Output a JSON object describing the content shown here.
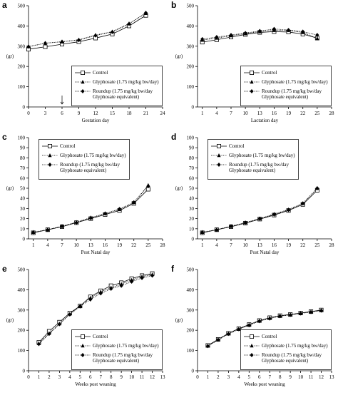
{
  "chart_data": [
    {
      "type": "line",
      "panel": "a",
      "ylabel": "(gr)",
      "xlabel": "Gestation day",
      "x": [
        0,
        3,
        6,
        9,
        12,
        15,
        18,
        21
      ],
      "xlim": [
        0,
        24
      ],
      "xticks": [
        0,
        3,
        6,
        9,
        12,
        15,
        18,
        21,
        24
      ],
      "ylim": [
        0,
        500
      ],
      "yticks": [
        0,
        100,
        200,
        300,
        400,
        500
      ],
      "legend": "lower right",
      "series": [
        {
          "name": "Control",
          "color": "#000000",
          "marker": "square",
          "dash": "solid",
          "values": [
            285,
            297,
            310,
            322,
            340,
            360,
            400,
            452
          ]
        },
        {
          "name": "Glyphosate (1.75 mg/kg bw/day)",
          "color": "#000000",
          "marker": "triangle",
          "dash": "dotted",
          "values": [
            298,
            315,
            322,
            332,
            355,
            372,
            412,
            462
          ]
        },
        {
          "name": "Roundup (1.75 mg/kg bw/day Glyphosate equivalent)",
          "color": "#000000",
          "marker": "diamond",
          "dash": "dotted",
          "values": [
            298,
            315,
            322,
            330,
            353,
            370,
            410,
            465
          ]
        }
      ]
    },
    {
      "type": "line",
      "panel": "b",
      "ylabel": "(gr)",
      "xlabel": "Lactation day",
      "x": [
        1,
        4,
        7,
        10,
        13,
        16,
        19,
        22,
        25
      ],
      "xlim": [
        0,
        28
      ],
      "xticks": [
        1,
        4,
        7,
        10,
        13,
        16,
        19,
        22,
        25,
        28
      ],
      "ylim": [
        0,
        500
      ],
      "yticks": [
        0,
        100,
        200,
        300,
        400,
        500
      ],
      "legend": "lower right",
      "series": [
        {
          "name": "Control",
          "color": "#000000",
          "marker": "square",
          "dash": "solid",
          "values": [
            320,
            332,
            345,
            358,
            368,
            372,
            370,
            360,
            340
          ]
        },
        {
          "name": "Glyphosate (1.75 mg/kg bw/day)",
          "color": "#000000",
          "marker": "triangle",
          "dash": "dotted",
          "values": [
            330,
            340,
            352,
            362,
            372,
            378,
            378,
            368,
            338
          ]
        },
        {
          "name": "Roundup (1.75 mg/kg bw/day Glyphosate equivalent)",
          "color": "#000000",
          "marker": "diamond",
          "dash": "dotted",
          "values": [
            335,
            345,
            355,
            365,
            375,
            385,
            380,
            372,
            355
          ]
        }
      ]
    },
    {
      "type": "line",
      "panel": "c",
      "ylabel": "(gr)",
      "xlabel": "Post Natal day",
      "x": [
        1,
        4,
        7,
        10,
        13,
        16,
        19,
        22,
        25
      ],
      "xlim": [
        0,
        28
      ],
      "xticks": [
        1,
        4,
        7,
        10,
        13,
        16,
        19,
        22,
        25,
        28
      ],
      "ylim": [
        0,
        100
      ],
      "yticks": [
        0,
        10,
        20,
        30,
        40,
        50,
        60,
        70,
        80,
        90,
        100
      ],
      "legend": "upper left",
      "series": [
        {
          "name": "Control",
          "color": "#000000",
          "marker": "square",
          "dash": "solid",
          "values": [
            6,
            9,
            12,
            16,
            20,
            24,
            28,
            35,
            49
          ]
        },
        {
          "name": "Glyphosate (1.75 mg/kg bw/day)",
          "color": "#000000",
          "marker": "triangle",
          "dash": "dotted",
          "values": [
            6.5,
            9,
            12.5,
            16.5,
            21,
            25,
            29,
            36,
            53
          ]
        },
        {
          "name": "Roundup (1.75 mg/kg bw/day Glyphosate equivalent)",
          "color": "#000000",
          "marker": "diamond",
          "dash": "dotted",
          "values": [
            6.5,
            9,
            12.5,
            16,
            20.5,
            25,
            29.5,
            36,
            52
          ]
        }
      ]
    },
    {
      "type": "line",
      "panel": "d",
      "ylabel": "(gr)",
      "xlabel": "Post Natal day",
      "x": [
        1,
        4,
        7,
        10,
        13,
        16,
        19,
        22,
        25
      ],
      "xlim": [
        0,
        28
      ],
      "xticks": [
        1,
        4,
        7,
        10,
        13,
        16,
        19,
        22,
        25,
        28
      ],
      "ylim": [
        0,
        100
      ],
      "yticks": [
        0,
        10,
        20,
        30,
        40,
        50,
        60,
        70,
        80,
        90,
        100
      ],
      "legend": "upper left",
      "series": [
        {
          "name": "Control",
          "color": "#000000",
          "marker": "square",
          "dash": "solid",
          "values": [
            6,
            9,
            12,
            15.5,
            19.5,
            23.5,
            28,
            34,
            48
          ]
        },
        {
          "name": "Glyphosate (1.75 mg/kg bw/day)",
          "color": "#000000",
          "marker": "triangle",
          "dash": "dotted",
          "values": [
            6.5,
            9,
            12.5,
            16,
            20,
            24.5,
            29,
            35,
            50
          ]
        },
        {
          "name": "Roundup (1.75 mg/kg bw/day Glyphosate equivalent)",
          "color": "#000000",
          "marker": "diamond",
          "dash": "dotted",
          "values": [
            6.5,
            9,
            12.5,
            16,
            20,
            24,
            28.5,
            35,
            50
          ]
        }
      ]
    },
    {
      "type": "line",
      "panel": "e",
      "ylabel": "(gr)",
      "xlabel": "Weeks post weaning",
      "x": [
        1,
        2,
        3,
        4,
        5,
        6,
        7,
        8,
        9,
        10,
        11,
        12
      ],
      "xlim": [
        0,
        13
      ],
      "xticks": [
        0,
        1,
        2,
        3,
        4,
        5,
        6,
        7,
        8,
        9,
        10,
        11,
        12,
        13
      ],
      "ylim": [
        0,
        500
      ],
      "yticks": [
        0,
        100,
        200,
        300,
        400,
        500
      ],
      "legend": "lower right",
      "series": [
        {
          "name": "Control",
          "color": "#000000",
          "marker": "square",
          "dash": "solid",
          "values": [
            140,
            195,
            240,
            285,
            320,
            365,
            395,
            420,
            435,
            455,
            470,
            480
          ]
        },
        {
          "name": "Glyphosate (1.75 mg/kg bw/day)",
          "color": "#000000",
          "marker": "triangle",
          "dash": "dotted",
          "values": [
            135,
            185,
            232,
            280,
            320,
            360,
            390,
            410,
            428,
            448,
            465,
            475
          ]
        },
        {
          "name": "Roundup (1.75 mg/kg bw/day Glyphosate equivalent)",
          "color": "#000000",
          "marker": "diamond",
          "dash": "dotted",
          "values": [
            132,
            182,
            230,
            278,
            318,
            352,
            382,
            405,
            420,
            440,
            458,
            470
          ]
        }
      ]
    },
    {
      "type": "line",
      "panel": "f",
      "ylabel": "(gr)",
      "xlabel": "Weeks post weaning",
      "x": [
        1,
        2,
        3,
        4,
        5,
        6,
        7,
        8,
        9,
        10,
        11,
        12
      ],
      "xlim": [
        0,
        13
      ],
      "xticks": [
        0,
        1,
        2,
        3,
        4,
        5,
        6,
        7,
        8,
        9,
        10,
        11,
        12,
        13
      ],
      "ylim": [
        0,
        500
      ],
      "yticks": [
        0,
        100,
        200,
        300,
        400,
        500
      ],
      "legend": "lower right",
      "series": [
        {
          "name": "Control",
          "color": "#000000",
          "marker": "square",
          "dash": "solid",
          "values": [
            125,
            155,
            185,
            208,
            228,
            248,
            262,
            272,
            278,
            285,
            292,
            300
          ]
        },
        {
          "name": "Glyphosate (1.75 mg/kg bw/day)",
          "color": "#000000",
          "marker": "triangle",
          "dash": "dotted",
          "values": [
            122,
            152,
            183,
            206,
            226,
            246,
            260,
            270,
            276,
            284,
            292,
            298
          ]
        },
        {
          "name": "Roundup (1.75 mg/kg bw/day Glyphosate equivalent)",
          "color": "#000000",
          "marker": "diamond",
          "dash": "dotted",
          "values": [
            122,
            153,
            182,
            205,
            225,
            245,
            258,
            270,
            276,
            283,
            290,
            297
          ]
        }
      ]
    }
  ]
}
